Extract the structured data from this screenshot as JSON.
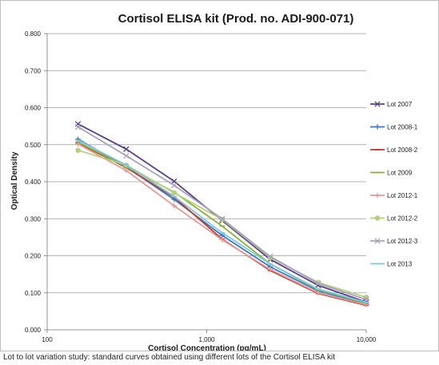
{
  "chart_data": {
    "type": "line",
    "title": "Cortisol ELISA kit (Prod. no. ADI-900-071)",
    "xlabel": "Cortisol Concentration (pg/mL)",
    "ylabel": "Optical Density",
    "x_scale": "log",
    "xlim": [
      100,
      10000
    ],
    "ylim": [
      0,
      0.8
    ],
    "x_ticks": [
      "100",
      "1,000",
      "10,000"
    ],
    "y_ticks": [
      "0.000",
      "0.100",
      "0.200",
      "0.300",
      "0.400",
      "0.500",
      "0.600",
      "0.700",
      "0.800"
    ],
    "grid": "horizontal",
    "legend": "right",
    "x": [
      156,
      313,
      625,
      1250,
      2500,
      5000,
      10000
    ],
    "series": [
      {
        "name": "Lot 2007",
        "color": "#5b3f8c",
        "marker": "x",
        "values": [
          0.556,
          0.488,
          0.401,
          0.295,
          0.19,
          0.12,
          0.075
        ]
      },
      {
        "name": "Lot 2008-1",
        "color": "#3b78c3",
        "marker": "plus",
        "values": [
          0.515,
          0.44,
          0.352,
          0.255,
          0.17,
          0.105,
          0.07
        ]
      },
      {
        "name": "Lot 2008-2",
        "color": "#c0392b",
        "marker": "dash",
        "values": [
          0.505,
          0.438,
          0.358,
          0.245,
          0.16,
          0.098,
          0.066
        ]
      },
      {
        "name": "Lot 2009",
        "color": "#8bb33a",
        "marker": "dash",
        "values": [
          0.507,
          0.44,
          0.372,
          0.28,
          0.178,
          0.108,
          0.072
        ]
      },
      {
        "name": "Lot 2012-1",
        "color": "#e59a9a",
        "marker": "plus",
        "values": [
          0.502,
          0.43,
          0.335,
          0.243,
          0.163,
          0.1,
          0.068
        ]
      },
      {
        "name": "Lot 2012-2",
        "color": "#b5cf7e",
        "marker": "circle",
        "values": [
          0.485,
          0.445,
          0.37,
          0.298,
          0.195,
          0.128,
          0.088
        ]
      },
      {
        "name": "Lot 2012-3",
        "color": "#a7a0bd",
        "marker": "x",
        "values": [
          0.548,
          0.47,
          0.39,
          0.3,
          0.198,
          0.125,
          0.082
        ]
      },
      {
        "name": "Lot 2013",
        "color": "#7ec8e3",
        "marker": "dash",
        "values": [
          0.512,
          0.445,
          0.36,
          0.262,
          0.178,
          0.11,
          0.074
        ]
      }
    ]
  },
  "caption": "Lot to lot variation study: standard curves obtained using different lots of the Cortisol ELISA kit"
}
